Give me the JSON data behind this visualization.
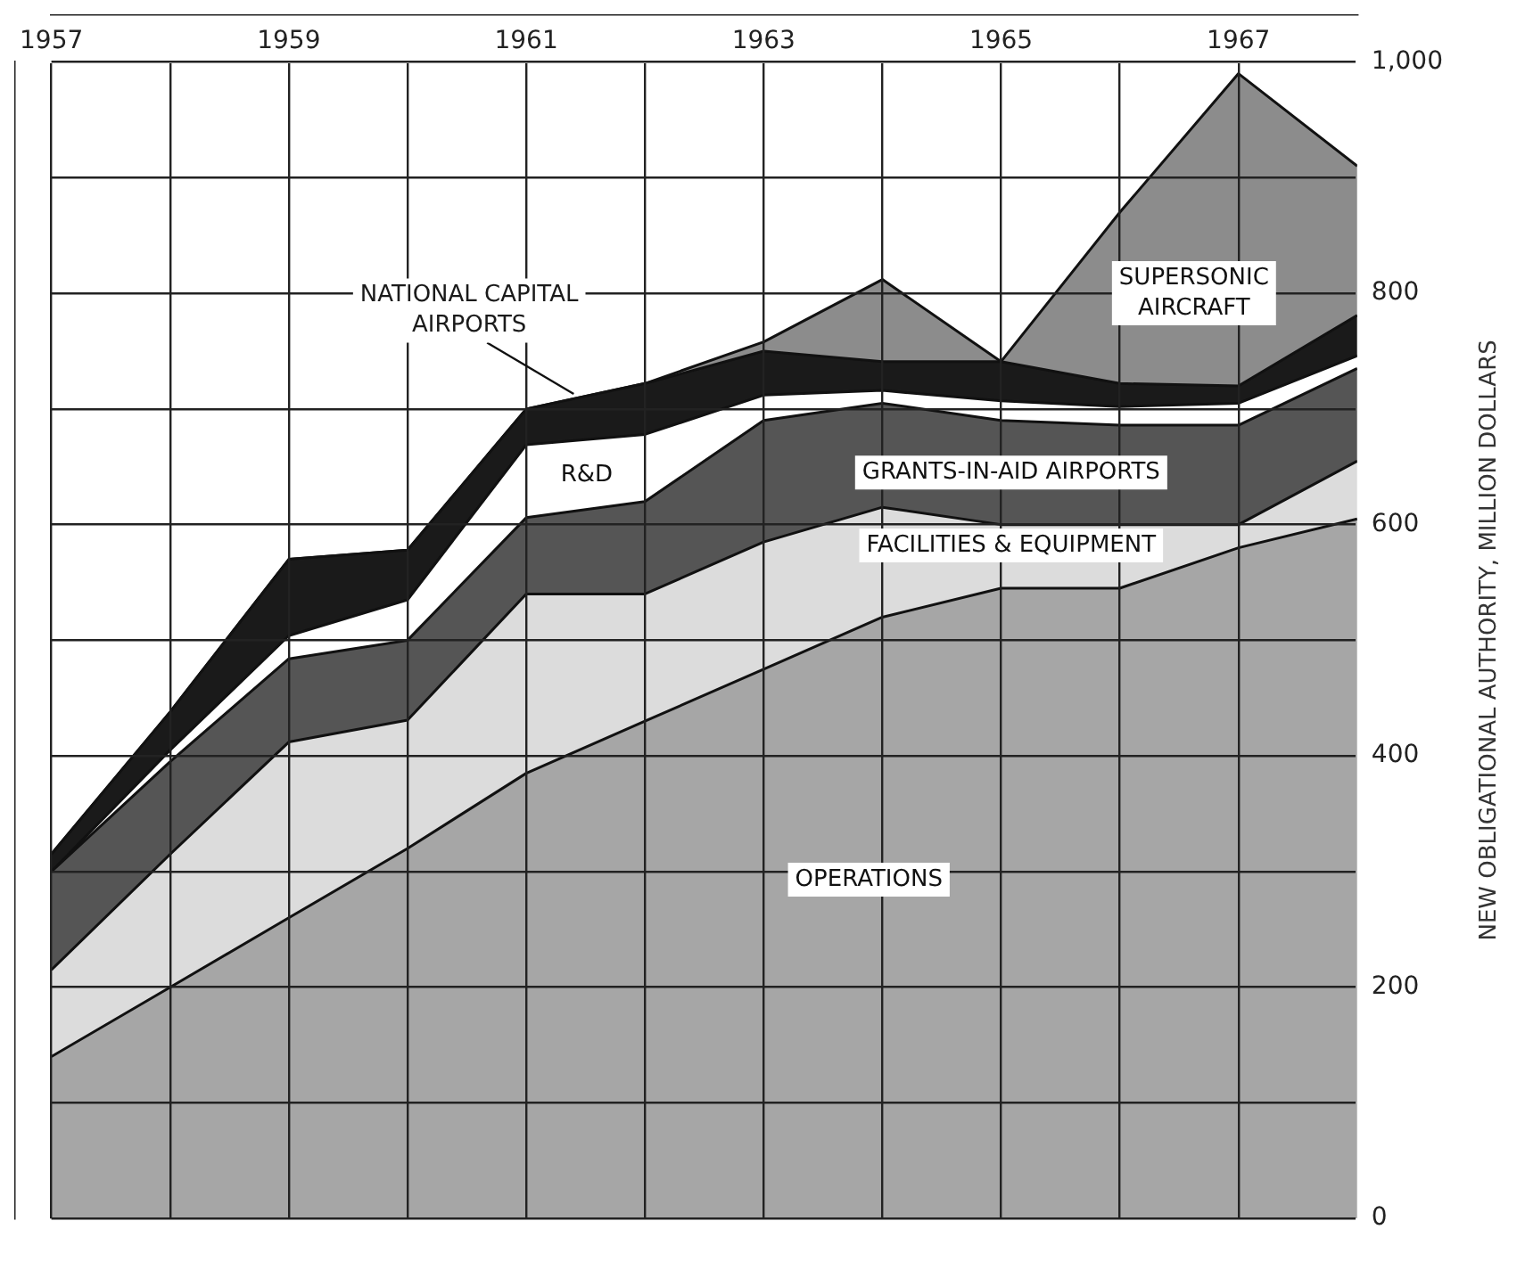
{
  "chart_data": {
    "type": "area",
    "stacked": true,
    "ylabel": "NEW OBLIGATIONAL AUTHORITY, MILLION DOLLARS",
    "x": [
      1957,
      1958,
      1959,
      1960,
      1961,
      1962,
      1963,
      1964,
      1965,
      1966,
      1967,
      1968
    ],
    "xlim": [
      1957,
      1968
    ],
    "xticks": [
      1957,
      {
        "value": 1958,
        "label": null
      },
      1959,
      {
        "value": 1960,
        "label": null
      },
      1961,
      {
        "value": 1962,
        "label": null
      },
      1963,
      {
        "value": 1964,
        "label": null
      },
      1965,
      {
        "value": 1966,
        "label": null
      },
      1967
    ],
    "ylim": [
      0,
      1000
    ],
    "yticks": [
      0,
      {
        "value": 100,
        "label": null
      },
      200,
      {
        "value": 300,
        "label": null
      },
      400,
      {
        "value": 500,
        "label": null
      },
      600,
      {
        "value": 700,
        "label": null
      },
      800,
      {
        "value": 900,
        "label": null
      },
      {
        "value": 1000,
        "label": "1,000"
      }
    ],
    "grid": true,
    "legend": false,
    "series": [
      {
        "name": "OPERATIONS",
        "color": "#a6a6a6",
        "values": [
          140,
          200,
          260,
          320,
          385,
          430,
          475,
          520,
          545,
          545,
          580,
          605
        ]
      },
      {
        "name": "FACILITIES & EQUIPMENT",
        "color": "#dcdcdc",
        "values": [
          75,
          115,
          152,
          111,
          155,
          110,
          110,
          95,
          55,
          55,
          20,
          50
        ]
      },
      {
        "name": "GRANTS-IN-AID AIRPORTS",
        "color": "#555555",
        "values": [
          85,
          80,
          72,
          69,
          66,
          80,
          105,
          90,
          90,
          86,
          86,
          80
        ]
      },
      {
        "name": "R&D",
        "color": "#ffffff",
        "values": [
          0,
          10,
          20,
          35,
          63,
          58,
          22,
          11,
          17,
          16,
          19,
          11
        ]
      },
      {
        "name": "NATIONAL CAPITAL AIRPORTS",
        "color": "#1a1a1a",
        "values": [
          15,
          33,
          66,
          43,
          31,
          44,
          38,
          25,
          34,
          20,
          15,
          35
        ]
      },
      {
        "name": "SUPERSONIC AIRCRAFT",
        "color": "#8c8c8c",
        "values": [
          0,
          0,
          0,
          0,
          0,
          0,
          8,
          71,
          0,
          148,
          270,
          129
        ]
      }
    ]
  }
}
